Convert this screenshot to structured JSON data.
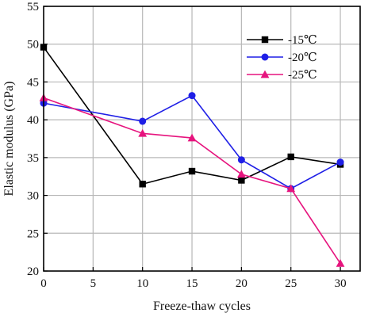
{
  "chart_data": {
    "type": "line",
    "xlabel": "Freeze-thaw cycles",
    "ylabel": "Elastic modulus (GPa)",
    "xlim": [
      0,
      32
    ],
    "ylim": [
      20,
      55
    ],
    "xticks": [
      0,
      5,
      10,
      15,
      20,
      25,
      30
    ],
    "yticks": [
      20,
      25,
      30,
      35,
      40,
      45,
      50,
      55
    ],
    "grid": true,
    "legend_position": "top-right",
    "series": [
      {
        "name": "-15℃",
        "color": "#000000",
        "marker": "square",
        "x": [
          0,
          10,
          15,
          20,
          25,
          30
        ],
        "y": [
          49.6,
          31.5,
          33.2,
          32.0,
          35.1,
          34.1
        ]
      },
      {
        "name": "-20℃",
        "color": "#1f1fe6",
        "marker": "circle",
        "x": [
          0,
          10,
          15,
          20,
          25,
          30
        ],
        "y": [
          42.2,
          39.8,
          43.2,
          34.7,
          30.9,
          34.4
        ]
      },
      {
        "name": "-25℃",
        "color": "#e6147e",
        "marker": "triangle",
        "x": [
          0,
          10,
          15,
          20,
          25,
          30
        ],
        "y": [
          42.9,
          38.2,
          37.6,
          32.8,
          30.9,
          21.0
        ]
      }
    ]
  }
}
